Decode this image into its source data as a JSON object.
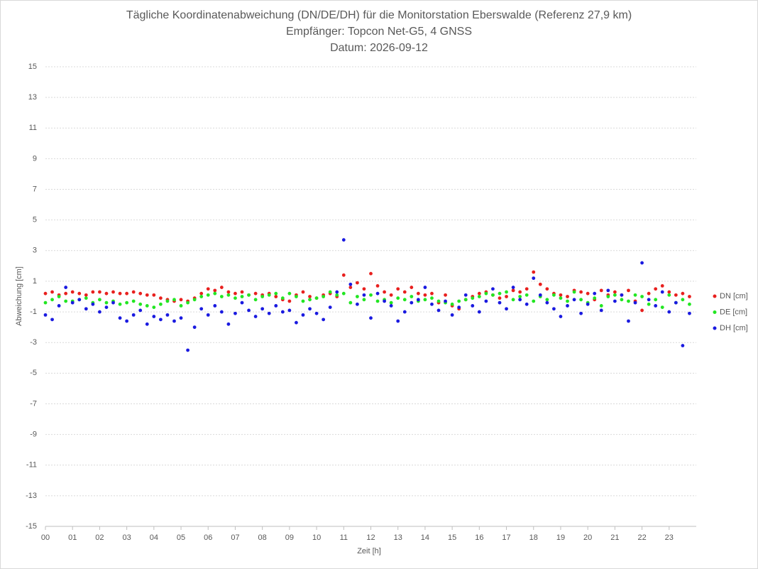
{
  "chart_data": {
    "type": "scatter",
    "title": "Tägliche Koordinatenabweichung (DN/DE/DH) für die Monitorstation Eberswalde (Referenz 27,9 km)",
    "subtitle": "Empfänger: Topcon Net-G5, 4 GNSS",
    "date_line": "Datum: 2026-09-12",
    "x_label": "Zeit [h]",
    "y_label": "Abweichung [cm]",
    "xlim": [
      0,
      24
    ],
    "xticks": [
      {
        "value": 0,
        "label": "00"
      },
      {
        "value": 1,
        "label": "01"
      },
      {
        "value": 2,
        "label": "02"
      },
      {
        "value": 3,
        "label": "03"
      },
      {
        "value": 4,
        "label": "04"
      },
      {
        "value": 5,
        "label": "05"
      },
      {
        "value": 6,
        "label": "06"
      },
      {
        "value": 7,
        "label": "07"
      },
      {
        "value": 8,
        "label": "08"
      },
      {
        "value": 9,
        "label": "09"
      },
      {
        "value": 10,
        "label": "10"
      },
      {
        "value": 11,
        "label": "11"
      },
      {
        "value": 12,
        "label": "12"
      },
      {
        "value": 13,
        "label": "13"
      },
      {
        "value": 14,
        "label": "14"
      },
      {
        "value": 15,
        "label": "15"
      },
      {
        "value": 16,
        "label": "16"
      },
      {
        "value": 17,
        "label": "17"
      },
      {
        "value": 18,
        "label": "18"
      },
      {
        "value": 19,
        "label": "19"
      },
      {
        "value": 20,
        "label": "20"
      },
      {
        "value": 21,
        "label": "21"
      },
      {
        "value": 22,
        "label": "22"
      },
      {
        "value": 23,
        "label": "23"
      }
    ],
    "ylim": [
      -15,
      15
    ],
    "yticks": [
      -15,
      -13,
      -11,
      -9,
      -7,
      -5,
      -3,
      -1,
      1,
      3,
      5,
      7,
      9,
      11,
      13,
      15
    ],
    "grid": true,
    "legend": "right",
    "x": [
      0,
      0.25,
      0.5,
      0.75,
      1,
      1.25,
      1.5,
      1.75,
      2,
      2.25,
      2.5,
      2.75,
      3,
      3.25,
      3.5,
      3.75,
      4,
      4.25,
      4.5,
      4.75,
      5,
      5.25,
      5.5,
      5.75,
      6,
      6.25,
      6.5,
      6.75,
      7,
      7.25,
      7.5,
      7.75,
      8,
      8.25,
      8.5,
      8.75,
      9,
      9.25,
      9.5,
      9.75,
      10,
      10.25,
      10.5,
      10.75,
      11,
      11.25,
      11.5,
      11.75,
      12,
      12.25,
      12.5,
      12.75,
      13,
      13.25,
      13.5,
      13.75,
      14,
      14.25,
      14.5,
      14.75,
      15,
      15.25,
      15.5,
      15.75,
      16,
      16.25,
      16.5,
      16.75,
      17,
      17.25,
      17.5,
      17.75,
      18,
      18.25,
      18.5,
      18.75,
      19,
      19.25,
      19.5,
      19.75,
      20,
      20.25,
      20.5,
      20.75,
      21,
      21.25,
      21.5,
      21.75,
      22,
      22.25,
      22.5,
      22.75,
      23,
      23.25,
      23.5,
      23.75
    ],
    "series": [
      {
        "name": "DN [cm]",
        "color": "#e8201e",
        "values": [
          0.2,
          0.3,
          0.1,
          0.2,
          0.3,
          0.2,
          0.1,
          0.3,
          0.3,
          0.2,
          0.3,
          0.2,
          0.2,
          0.3,
          0.2,
          0.1,
          0.1,
          -0.1,
          -0.2,
          -0.3,
          -0.2,
          -0.3,
          -0.1,
          0.2,
          0.5,
          0.4,
          0.6,
          0.3,
          0.2,
          0.3,
          0.1,
          0.2,
          0.1,
          0.2,
          0.0,
          -0.2,
          -0.3,
          0.1,
          0.3,
          0.0,
          -0.1,
          0.1,
          0.2,
          0.0,
          1.4,
          0.6,
          0.9,
          0.5,
          1.5,
          0.7,
          0.3,
          0.1,
          0.5,
          0.3,
          0.6,
          0.2,
          0.1,
          0.2,
          -0.4,
          0.1,
          -0.6,
          -0.8,
          -0.2,
          0.0,
          0.2,
          0.3,
          0.1,
          -0.1,
          0.0,
          0.4,
          0.3,
          0.5,
          1.6,
          0.8,
          0.5,
          0.2,
          0.1,
          0.0,
          0.4,
          0.3,
          0.2,
          -0.2,
          0.4,
          0.1,
          0.3,
          0.1,
          0.4,
          -0.3,
          -0.9,
          0.2,
          0.5,
          0.7,
          0.3,
          0.1,
          0.2,
          0.0
        ]
      },
      {
        "name": "DE [cm]",
        "color": "#22e622",
        "values": [
          -0.4,
          -0.2,
          0.0,
          -0.3,
          -0.3,
          -0.2,
          -0.1,
          -0.4,
          -0.2,
          -0.4,
          -0.3,
          -0.5,
          -0.4,
          -0.3,
          -0.5,
          -0.6,
          -0.7,
          -0.5,
          -0.3,
          -0.2,
          -0.6,
          -0.4,
          -0.2,
          0.0,
          0.1,
          0.2,
          0.0,
          0.1,
          -0.1,
          0.0,
          0.1,
          -0.2,
          0.0,
          0.1,
          0.2,
          -0.1,
          0.2,
          0.0,
          -0.3,
          -0.2,
          -0.1,
          0.0,
          0.3,
          0.1,
          0.2,
          -0.4,
          0.0,
          -0.2,
          0.1,
          -0.3,
          -0.2,
          -0.4,
          -0.1,
          -0.2,
          0.0,
          -0.3,
          -0.2,
          -0.1,
          -0.3,
          -0.4,
          -0.5,
          -0.3,
          -0.2,
          -0.1,
          0.0,
          0.2,
          0.1,
          0.2,
          0.3,
          -0.2,
          0.0,
          0.1,
          -0.3,
          0.0,
          -0.2,
          0.1,
          -0.1,
          -0.3,
          0.3,
          -0.2,
          -0.4,
          -0.1,
          -0.6,
          0.0,
          0.1,
          -0.2,
          -0.3,
          0.1,
          0.0,
          -0.5,
          -0.2,
          -0.7,
          0.1,
          -0.4,
          -0.2,
          -0.5
        ]
      },
      {
        "name": "DH [cm]",
        "color": "#1a1ae0",
        "values": [
          -1.2,
          -1.5,
          -0.6,
          0.6,
          -0.4,
          -0.2,
          -0.8,
          -0.5,
          -1.0,
          -0.7,
          -0.4,
          -1.4,
          -1.6,
          -1.2,
          -0.9,
          -1.8,
          -1.3,
          -1.5,
          -1.2,
          -1.6,
          -1.4,
          -3.5,
          -2.0,
          -0.8,
          -1.2,
          -0.6,
          -1.0,
          -1.8,
          -1.1,
          -0.4,
          -0.9,
          -1.3,
          -0.8,
          -1.1,
          -0.6,
          -1.0,
          -0.9,
          -1.7,
          -1.2,
          -0.8,
          -1.1,
          -1.5,
          -0.7,
          0.3,
          3.7,
          0.8,
          -0.5,
          0.1,
          -1.4,
          0.2,
          -0.3,
          -0.6,
          -1.6,
          -1.0,
          -0.4,
          -0.2,
          0.6,
          -0.5,
          -0.9,
          -0.3,
          -1.2,
          -0.7,
          0.1,
          -0.6,
          -1.0,
          -0.3,
          0.5,
          -0.4,
          -0.8,
          0.6,
          -0.2,
          -0.5,
          1.2,
          0.1,
          -0.4,
          -0.8,
          -1.3,
          -0.6,
          -0.2,
          -1.1,
          -0.5,
          0.2,
          -0.9,
          0.4,
          -0.3,
          0.1,
          -1.6,
          -0.4,
          2.2,
          -0.2,
          -0.6,
          0.3,
          -1.0,
          -0.4,
          -3.2,
          -1.1
        ]
      }
    ]
  }
}
